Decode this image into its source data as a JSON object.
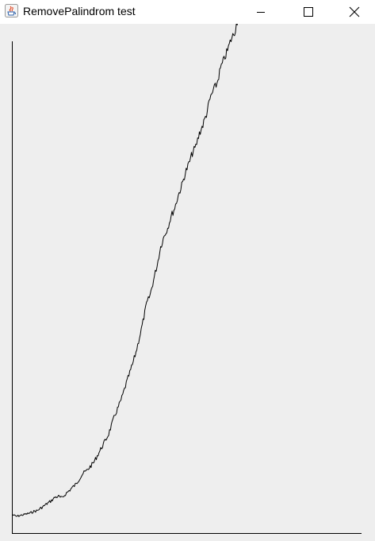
{
  "window": {
    "title": "RemovePalindrom test",
    "app_icon": "java-cup-icon",
    "controls": {
      "minimize_icon": "minimize-icon",
      "maximize_icon": "maximize-icon",
      "close_icon": "close-icon"
    }
  },
  "chart_data": {
    "type": "line",
    "title": "",
    "xlabel": "",
    "ylabel": "",
    "grid": false,
    "line_color": "#000000",
    "series": [
      {
        "x": [
          0,
          1,
          2,
          3,
          4,
          5,
          6,
          7,
          8,
          9,
          10,
          11,
          12,
          13,
          14,
          15,
          16,
          17,
          18,
          19,
          20,
          21,
          22,
          23,
          24,
          25,
          26,
          27,
          28,
          29,
          30,
          31,
          32,
          33,
          34,
          35,
          36,
          37,
          38,
          39,
          40,
          41,
          42,
          43,
          44,
          45,
          46,
          47,
          48,
          49,
          50,
          51,
          52,
          53,
          54,
          55,
          56,
          57,
          58,
          59,
          60,
          61,
          62,
          63,
          64,
          65,
          66,
          67,
          68,
          69,
          70
        ],
        "y": [
          8,
          6,
          7,
          8,
          9,
          10,
          12,
          13,
          16,
          19,
          22,
          25,
          29,
          30,
          28,
          33,
          37,
          41,
          45,
          52,
          58,
          61,
          66,
          71,
          79,
          87,
          95,
          103,
          115,
          128,
          138,
          149,
          163,
          176,
          189,
          204,
          222,
          241,
          262,
          273,
          291,
          309,
          331,
          344,
          354,
          368,
          378,
          393,
          405,
          420,
          431,
          444,
          452,
          468,
          478,
          491,
          509,
          520,
          528,
          546,
          557,
          568,
          581,
          590,
          608,
          620,
          630,
          641,
          656,
          672,
          690
        ]
      }
    ]
  }
}
